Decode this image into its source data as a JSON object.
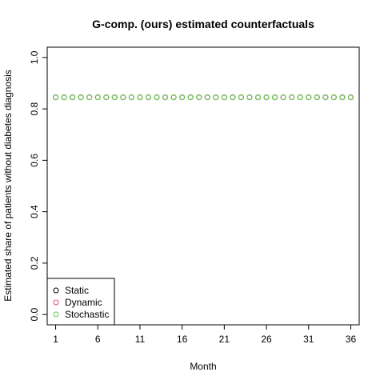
{
  "chart_data": {
    "type": "scatter",
    "title": "G-comp. (ours) estimated counterfactuals",
    "xlabel": "Month",
    "ylabel": "Estimated share of patients without diabetes diagnosis",
    "xlim": [
      0,
      37
    ],
    "ylim": [
      0,
      1
    ],
    "x_ticks": [
      1,
      6,
      11,
      16,
      21,
      26,
      31,
      36
    ],
    "y_ticks": [
      0.0,
      0.2,
      0.4,
      0.6,
      0.8,
      1.0
    ],
    "y_tick_labels": [
      "0.0",
      "0.2",
      "0.4",
      "0.6",
      "0.8",
      "1.0"
    ],
    "x": [
      1,
      2,
      3,
      4,
      5,
      6,
      7,
      8,
      9,
      10,
      11,
      12,
      13,
      14,
      15,
      16,
      17,
      18,
      19,
      20,
      21,
      22,
      23,
      24,
      25,
      26,
      27,
      28,
      29,
      30,
      31,
      32,
      33,
      34,
      35,
      36
    ],
    "series": [
      {
        "name": "Static",
        "color": "#000000",
        "values": [
          0.845,
          0.845,
          0.845,
          0.845,
          0.845,
          0.845,
          0.845,
          0.845,
          0.845,
          0.845,
          0.845,
          0.845,
          0.845,
          0.845,
          0.845,
          0.845,
          0.845,
          0.845,
          0.845,
          0.845,
          0.845,
          0.845,
          0.845,
          0.845,
          0.845,
          0.845,
          0.845,
          0.845,
          0.845,
          0.845,
          0.845,
          0.845,
          0.845,
          0.845,
          0.845,
          0.845
        ]
      },
      {
        "name": "Dynamic",
        "color": "#df536b",
        "values": [
          0.845,
          0.845,
          0.845,
          0.845,
          0.845,
          0.845,
          0.845,
          0.845,
          0.845,
          0.845,
          0.845,
          0.845,
          0.845,
          0.845,
          0.845,
          0.845,
          0.845,
          0.845,
          0.845,
          0.845,
          0.845,
          0.845,
          0.845,
          0.845,
          0.845,
          0.845,
          0.845,
          0.845,
          0.845,
          0.845,
          0.845,
          0.845,
          0.845,
          0.845,
          0.845,
          0.845
        ]
      },
      {
        "name": "Stochastic",
        "color": "#61d04f",
        "values": [
          0.845,
          0.845,
          0.845,
          0.845,
          0.845,
          0.845,
          0.845,
          0.845,
          0.845,
          0.845,
          0.845,
          0.845,
          0.845,
          0.845,
          0.845,
          0.845,
          0.845,
          0.845,
          0.845,
          0.845,
          0.845,
          0.845,
          0.845,
          0.845,
          0.845,
          0.845,
          0.845,
          0.845,
          0.845,
          0.845,
          0.845,
          0.845,
          0.845,
          0.845,
          0.845,
          0.845
        ]
      }
    ],
    "grid": false,
    "legend_position": "bottom-left",
    "marker": "open-circle"
  }
}
